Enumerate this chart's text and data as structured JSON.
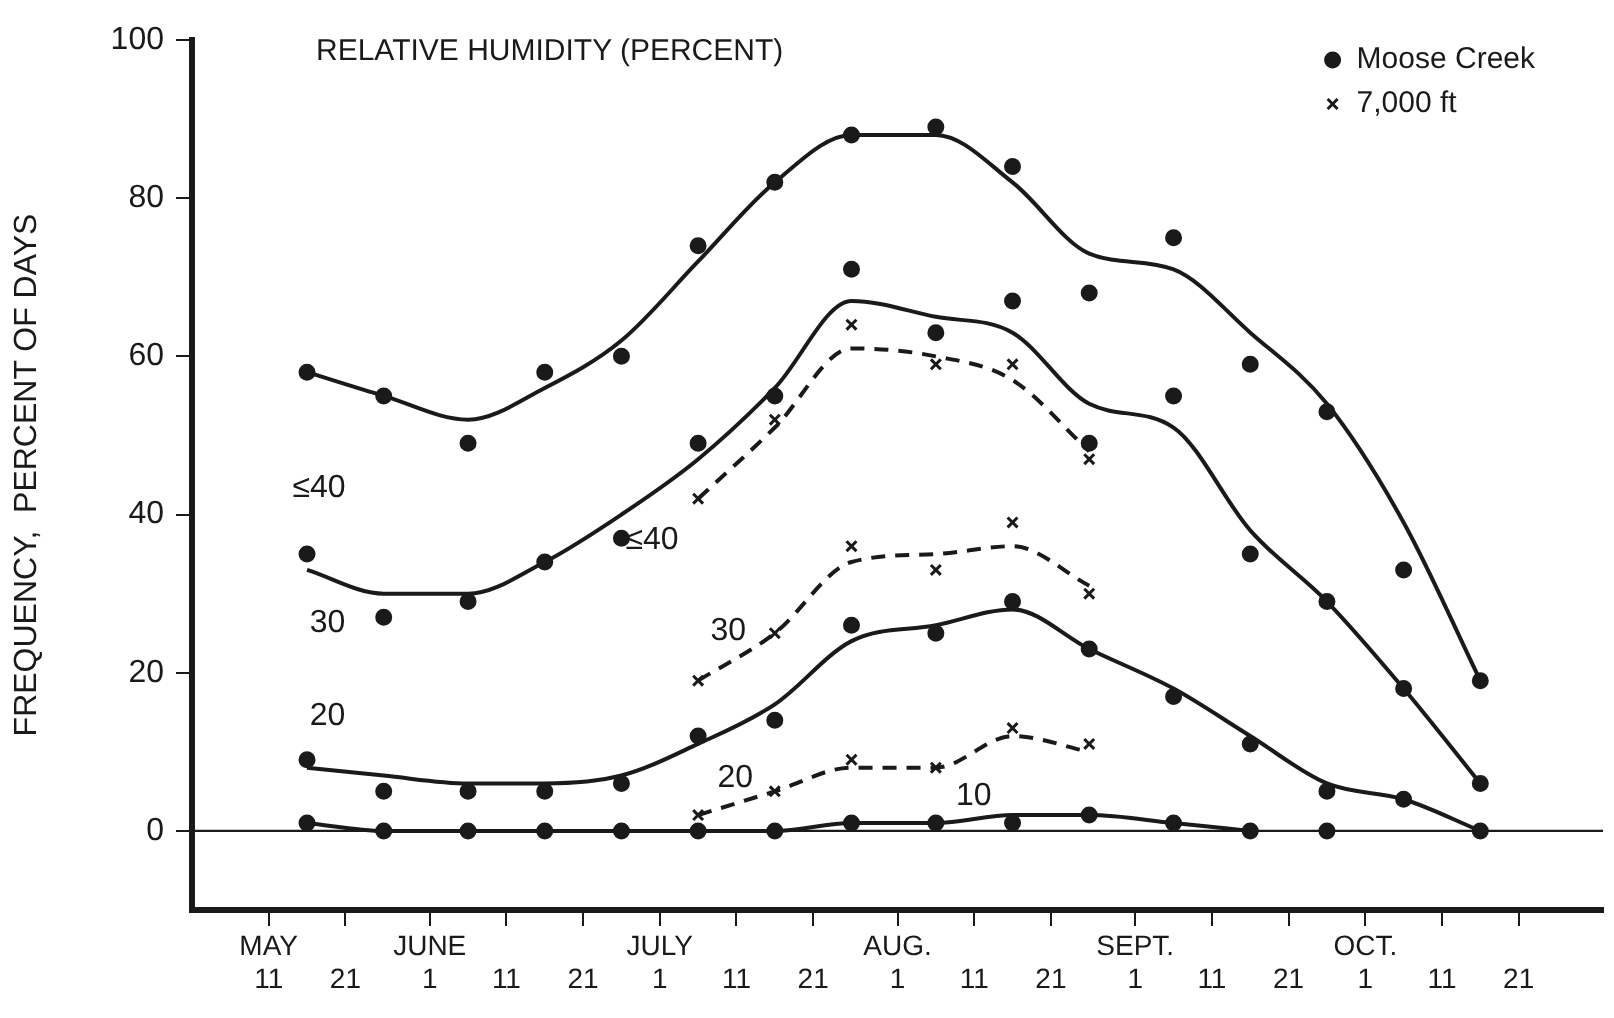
{
  "chart_data": {
    "type": "scatter",
    "title": "RELATIVE HUMIDITY (PERCENT)",
    "ylabel": "FREQUENCY,  PERCENT OF DAYS",
    "xlim": [
      "--05-01",
      "--11-01"
    ],
    "xticks": [
      {
        "value": "--05-11",
        "label": "MAY\n11"
      },
      {
        "value": "--05-21",
        "label": "21"
      },
      {
        "value": "--06-01",
        "label": "JUNE\n1"
      },
      {
        "value": "--06-11",
        "label": "11"
      },
      {
        "value": "--06-21",
        "label": "21"
      },
      {
        "value": "--07-01",
        "label": "JULY\n1"
      },
      {
        "value": "--07-11",
        "label": "11"
      },
      {
        "value": "--07-21",
        "label": "21"
      },
      {
        "value": "--08-01",
        "label": "AUG.\n1"
      },
      {
        "value": "--08-11",
        "label": "11"
      },
      {
        "value": "--08-21",
        "label": "21"
      },
      {
        "value": "--09-01",
        "label": "SEPT.\n1"
      },
      {
        "value": "--09-11",
        "label": "11"
      },
      {
        "value": "--09-21",
        "label": "21"
      },
      {
        "value": "--10-01",
        "label": "OCT.\n1"
      },
      {
        "value": "--10-11",
        "label": "11"
      },
      {
        "value": "--10-21",
        "label": "21"
      }
    ],
    "ylim": [
      -10,
      100
    ],
    "yticks": [
      0,
      20,
      40,
      60,
      80,
      100
    ],
    "grid": false,
    "legend": "top right",
    "series": [
      {
        "name": "Moose Creek",
        "marker": "circle",
        "color": "#1a1a1a",
        "x": [
          "--05-16",
          "--05-26",
          "--06-06",
          "--06-16",
          "--06-26",
          "--07-06",
          "--07-16",
          "--07-26",
          "--08-06",
          "--08-16",
          "--08-26",
          "--09-06",
          "--09-16",
          "--09-26",
          "--10-06",
          "--10-16"
        ],
        "values": [
          58,
          55,
          49,
          58,
          60,
          74,
          82,
          88,
          89,
          84,
          68,
          75,
          59,
          53,
          33,
          19
        ]
      },
      {
        "marker": "circle",
        "color": "#1a1a1a",
        "x": [
          "--05-16",
          "--05-26",
          "--06-06",
          "--06-16",
          "--06-26",
          "--07-06",
          "--07-16",
          "--07-26",
          "--08-06",
          "--08-16",
          "--08-26",
          "--09-06",
          "--09-16",
          "--09-26",
          "--10-06",
          "--10-16"
        ],
        "values": [
          35,
          27,
          29,
          34,
          37,
          49,
          55,
          71,
          63,
          67,
          49,
          55,
          35,
          29,
          18,
          6
        ]
      },
      {
        "marker": "circle",
        "color": "#1a1a1a",
        "x": [
          "--05-16",
          "--05-26",
          "--06-06",
          "--06-16",
          "--06-26",
          "--07-06",
          "--07-16",
          "--07-26",
          "--08-06",
          "--08-16",
          "--08-26",
          "--09-06",
          "--09-16",
          "--09-26",
          "--10-06",
          "--10-16"
        ],
        "values": [
          9,
          5,
          5,
          5,
          6,
          12,
          14,
          26,
          25,
          29,
          23,
          17,
          11,
          5,
          4,
          0
        ]
      },
      {
        "marker": "circle",
        "color": "#1a1a1a",
        "x": [
          "--05-16",
          "--05-26",
          "--06-06",
          "--06-16",
          "--06-26",
          "--07-06",
          "--07-16",
          "--07-26",
          "--08-06",
          "--08-16",
          "--08-26",
          "--09-06",
          "--09-16",
          "--09-26"
        ],
        "values": [
          1,
          0,
          0,
          0,
          0,
          0,
          0,
          1,
          1,
          1,
          2,
          1,
          0,
          0
        ]
      },
      {
        "name": "7,000 ft",
        "marker": "cross",
        "color": "#1a1a1a",
        "x": [
          "--07-06",
          "--07-16",
          "--07-26",
          "--08-06",
          "--08-16",
          "--08-26"
        ],
        "values": [
          42,
          52,
          64,
          59,
          59,
          47
        ]
      },
      {
        "marker": "cross",
        "color": "#1a1a1a",
        "x": [
          "--07-06",
          "--07-16",
          "--07-26",
          "--08-06",
          "--08-16",
          "--08-26"
        ],
        "values": [
          19,
          25,
          36,
          33,
          39,
          30
        ]
      },
      {
        "marker": "cross",
        "color": "#1a1a1a",
        "x": [
          "--07-06",
          "--07-16",
          "--07-26",
          "--08-06",
          "--08-16",
          "--08-26"
        ],
        "values": [
          2,
          5,
          9,
          8,
          13,
          11
        ]
      },
      {
        "type": "line",
        "marker": "none",
        "line_style": "solid",
        "color": "#1a1a1a",
        "x": [
          "--05-16",
          "--05-26",
          "--06-06",
          "--06-16",
          "--06-26",
          "--07-06",
          "--07-16",
          "--07-26",
          "--08-06",
          "--08-16",
          "--08-26",
          "--09-06",
          "--09-16",
          "--09-26",
          "--10-06",
          "--10-16"
        ],
        "values": [
          58,
          55,
          52,
          56,
          62,
          72,
          82,
          88,
          88,
          82,
          73,
          71,
          63,
          54,
          39,
          19
        ]
      },
      {
        "type": "line",
        "marker": "none",
        "line_style": "solid",
        "color": "#1a1a1a",
        "x": [
          "--05-16",
          "--05-26",
          "--06-06",
          "--06-16",
          "--06-26",
          "--07-06",
          "--07-16",
          "--07-26",
          "--08-06",
          "--08-16",
          "--08-26",
          "--09-06",
          "--09-16",
          "--09-26",
          "--10-06",
          "--10-16"
        ],
        "values": [
          33,
          30,
          30,
          34,
          40,
          47,
          56,
          67,
          65,
          63,
          54,
          51,
          38,
          29,
          18,
          6
        ]
      },
      {
        "type": "line",
        "marker": "none",
        "line_style": "solid",
        "color": "#1a1a1a",
        "x": [
          "--05-16",
          "--05-26",
          "--06-06",
          "--06-16",
          "--06-26",
          "--07-06",
          "--07-16",
          "--07-26",
          "--08-06",
          "--08-16",
          "--08-26",
          "--09-06",
          "--09-16",
          "--09-26",
          "--10-06",
          "--10-16"
        ],
        "values": [
          8,
          7,
          6,
          6,
          7,
          11,
          16,
          24,
          26,
          28,
          23,
          18,
          12,
          6,
          4,
          0
        ]
      },
      {
        "type": "line",
        "marker": "none",
        "line_style": "solid",
        "color": "#1a1a1a",
        "x": [
          "--05-16",
          "--05-26",
          "--06-06",
          "--06-16",
          "--06-26",
          "--07-06",
          "--07-16",
          "--07-26",
          "--08-06",
          "--08-16",
          "--08-26",
          "--09-06",
          "--09-16"
        ],
        "values": [
          1,
          0,
          0,
          0,
          0,
          0,
          0,
          1,
          1,
          2,
          2,
          1,
          0
        ]
      },
      {
        "type": "line",
        "marker": "none",
        "line_style": "dashed",
        "color": "#1a1a1a",
        "x": [
          "--07-06",
          "--07-16",
          "--07-26",
          "--08-06",
          "--08-16",
          "--08-26"
        ],
        "values": [
          42,
          51,
          61,
          60,
          57,
          48
        ]
      },
      {
        "type": "line",
        "marker": "none",
        "line_style": "dashed",
        "color": "#1a1a1a",
        "x": [
          "--07-06",
          "--07-16",
          "--07-26",
          "--08-06",
          "--08-16",
          "--08-26"
        ],
        "values": [
          19,
          25,
          34,
          35,
          36,
          31
        ]
      },
      {
        "type": "line",
        "marker": "none",
        "line_style": "dashed",
        "color": "#1a1a1a",
        "x": [
          "--07-06",
          "--07-16",
          "--07-26",
          "--08-06",
          "--08-16",
          "--08-26"
        ],
        "values": [
          2,
          5,
          8,
          8,
          12,
          10
        ]
      }
    ],
    "ref_lines": [
      {
        "axis": "y",
        "value": 0,
        "color": "#1a1a1a"
      }
    ],
    "annotations": [
      "≤40",
      "30",
      "20",
      "≤40",
      "30",
      "20",
      "10"
    ]
  }
}
